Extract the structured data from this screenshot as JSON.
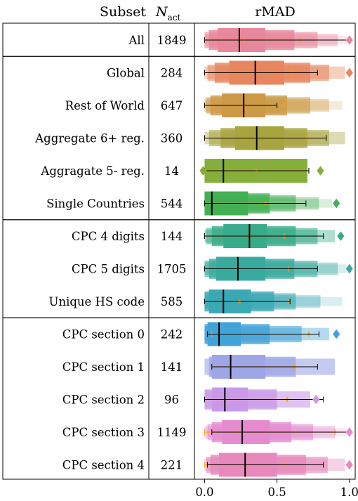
{
  "header": {
    "subset": "Subset",
    "n_main": "N",
    "n_sub": "act",
    "rmad": "rMAD"
  },
  "chart_data": {
    "type": "boxenplot",
    "title": "",
    "xlabel": "",
    "xlim": [
      -0.07,
      1.04
    ],
    "xticks": [
      0.0,
      0.5,
      1.0
    ],
    "xtick_labels": [
      "0.0",
      "0.5",
      "1.0"
    ],
    "grid": false,
    "groups": [
      [
        0
      ],
      [
        1,
        2,
        3,
        4,
        5
      ],
      [
        6,
        7,
        8
      ],
      [
        9,
        10,
        11,
        12,
        13
      ]
    ],
    "rows": [
      {
        "label": "All",
        "n": "1849",
        "color": "#e8889c",
        "median": 0.24,
        "levels": [
          [
            0.09,
            0.42
          ],
          [
            0.03,
            0.62
          ],
          [
            0.0,
            0.78
          ],
          [
            0.0,
            0.92
          ],
          [
            0.0,
            0.98
          ]
        ],
        "outliers": [
          1.0
        ],
        "whisker": [
          0.0,
          1.0
        ],
        "orange": [
          0.0,
          0.66
        ],
        "orange_center": 0.27
      },
      {
        "label": "Global",
        "n": "284",
        "color": "#e8865f",
        "median": 0.35,
        "levels": [
          [
            0.17,
            0.55
          ],
          [
            0.07,
            0.73
          ],
          [
            0.02,
            0.86
          ],
          [
            0.0,
            0.97
          ]
        ],
        "outliers": [
          1.0
        ],
        "whisker": [
          0.0,
          0.78
        ],
        "orange": [
          0.0,
          0.61
        ],
        "orange_center": 0.35
      },
      {
        "label": "Rest of World",
        "n": "647",
        "color": "#cc9a46",
        "median": 0.27,
        "levels": [
          [
            0.12,
            0.42
          ],
          [
            0.04,
            0.57
          ],
          [
            0.01,
            0.73
          ],
          [
            0.0,
            0.86
          ],
          [
            0.0,
            0.95
          ]
        ],
        "outliers": [],
        "whisker": [
          0.0,
          0.5
        ],
        "orange": [
          0.0,
          0.55
        ],
        "orange_center": 0.27
      },
      {
        "label": "Aggregate 6+ reg.",
        "n": "360",
        "color": "#a8a440",
        "median": 0.36,
        "levels": [
          [
            0.21,
            0.55
          ],
          [
            0.11,
            0.71
          ],
          [
            0.03,
            0.86
          ],
          [
            0.0,
            0.97
          ]
        ],
        "outliers": [],
        "whisker": [
          0.0,
          0.84
        ],
        "orange": [
          0.0,
          0.7
        ],
        "orange_center": 0.36
      },
      {
        "label": "Aggragate 5- reg.",
        "n": "14",
        "color": "#86ae3a",
        "median": 0.13,
        "levels": [
          [
            0.0,
            0.71
          ]
        ],
        "outliers": [
          -0.01,
          0.8
        ],
        "whisker": [
          0.0,
          0.72
        ],
        "orange": [
          0.0,
          0.72
        ],
        "orange_center": 0.36
      },
      {
        "label": "Single Countries",
        "n": "544",
        "color": "#43b054",
        "median": 0.05,
        "levels": [
          [
            0.0,
            0.3
          ],
          [
            0.0,
            0.45
          ],
          [
            0.0,
            0.63
          ],
          [
            0.0,
            0.79
          ],
          [
            0.0,
            0.88
          ]
        ],
        "outliers": [
          0.91
        ],
        "whisker": [
          0.0,
          0.7
        ],
        "orange": [
          0.0,
          0.45
        ],
        "orange_center": 0.42
      },
      {
        "label": "CPC 4 digits",
        "n": "144",
        "color": "#38ac8a",
        "median": 0.31,
        "levels": [
          [
            0.13,
            0.43
          ],
          [
            0.05,
            0.63
          ],
          [
            0.01,
            0.78
          ],
          [
            0.0,
            0.9
          ]
        ],
        "outliers": [
          0.94
        ],
        "whisker": [
          0.0,
          0.82
        ],
        "orange": [
          0.0,
          0.55
        ],
        "orange_center": 0.31
      },
      {
        "label": "CPC 5 digits",
        "n": "1705",
        "color": "#3aab9e",
        "median": 0.23,
        "levels": [
          [
            0.08,
            0.42
          ],
          [
            0.03,
            0.62
          ],
          [
            0.0,
            0.78
          ],
          [
            0.0,
            0.92
          ],
          [
            0.0,
            0.98
          ]
        ],
        "outliers": [
          1.0
        ],
        "whisker": [
          0.0,
          0.78
        ],
        "orange": [
          0.0,
          0.58
        ],
        "orange_center": 0.23
      },
      {
        "label": "Unique HS code",
        "n": "585",
        "color": "#3ba9b5",
        "median": 0.13,
        "levels": [
          [
            0.03,
            0.32
          ],
          [
            0.0,
            0.48
          ],
          [
            0.0,
            0.63
          ],
          [
            0.0,
            0.8
          ],
          [
            0.0,
            0.95
          ]
        ],
        "outliers": [],
        "whisker": [
          0.0,
          0.59
        ],
        "orange": [
          0.0,
          0.58
        ],
        "orange_center": 0.24
      },
      {
        "label": "CPC section 0",
        "n": "242",
        "color": "#43a3d8",
        "median": 0.1,
        "levels": [
          [
            0.02,
            0.25
          ],
          [
            0.0,
            0.45
          ],
          [
            0.0,
            0.67
          ],
          [
            0.0,
            0.86
          ]
        ],
        "outliers": [
          0.91
        ],
        "whisker": [
          0.02,
          0.79
        ],
        "orange": [
          0.05,
          0.72
        ],
        "orange_center": 0.72
      },
      {
        "label": "CPC section 1",
        "n": "141",
        "color": "#9fa6e6",
        "median": 0.18,
        "levels": [
          [
            0.05,
            0.42
          ],
          [
            0.03,
            0.63
          ],
          [
            0.0,
            0.9
          ]
        ],
        "outliers": [],
        "whisker": [
          0.05,
          0.78
        ],
        "orange": [
          0.05,
          0.62
        ],
        "orange_center": 0.62
      },
      {
        "label": "CPC section 2",
        "n": "96",
        "color": "#c99ae8",
        "median": 0.14,
        "levels": [
          [
            0.05,
            0.3
          ],
          [
            0.0,
            0.5
          ],
          [
            0.0,
            0.73
          ]
        ],
        "outliers": [
          0.77
        ],
        "whisker": [
          0.0,
          0.82
        ],
        "orange": [
          0.0,
          0.57
        ],
        "orange_center": 0.57
      },
      {
        "label": "CPC section 3",
        "n": "1149",
        "color": "#e68bd0",
        "median": 0.26,
        "levels": [
          [
            0.12,
            0.45
          ],
          [
            0.05,
            0.6
          ],
          [
            0.02,
            0.75
          ],
          [
            0.0,
            0.9
          ],
          [
            0.0,
            0.98
          ]
        ],
        "outliers": [
          1.0
        ],
        "whisker": [
          0.05,
          1.0
        ],
        "orange": [
          0.0,
          0.9
        ],
        "orange_center": 0.22
      },
      {
        "label": "CPC section 4",
        "n": "221",
        "color": "#e889bb",
        "median": 0.28,
        "levels": [
          [
            0.1,
            0.5
          ],
          [
            0.04,
            0.7
          ],
          [
            0.01,
            0.85
          ],
          [
            0.0,
            0.97
          ]
        ],
        "outliers": [
          1.0
        ],
        "whisker": [
          0.02,
          0.82
        ],
        "orange": [
          0.0,
          0.55
        ],
        "orange_center": 0.28
      }
    ]
  }
}
